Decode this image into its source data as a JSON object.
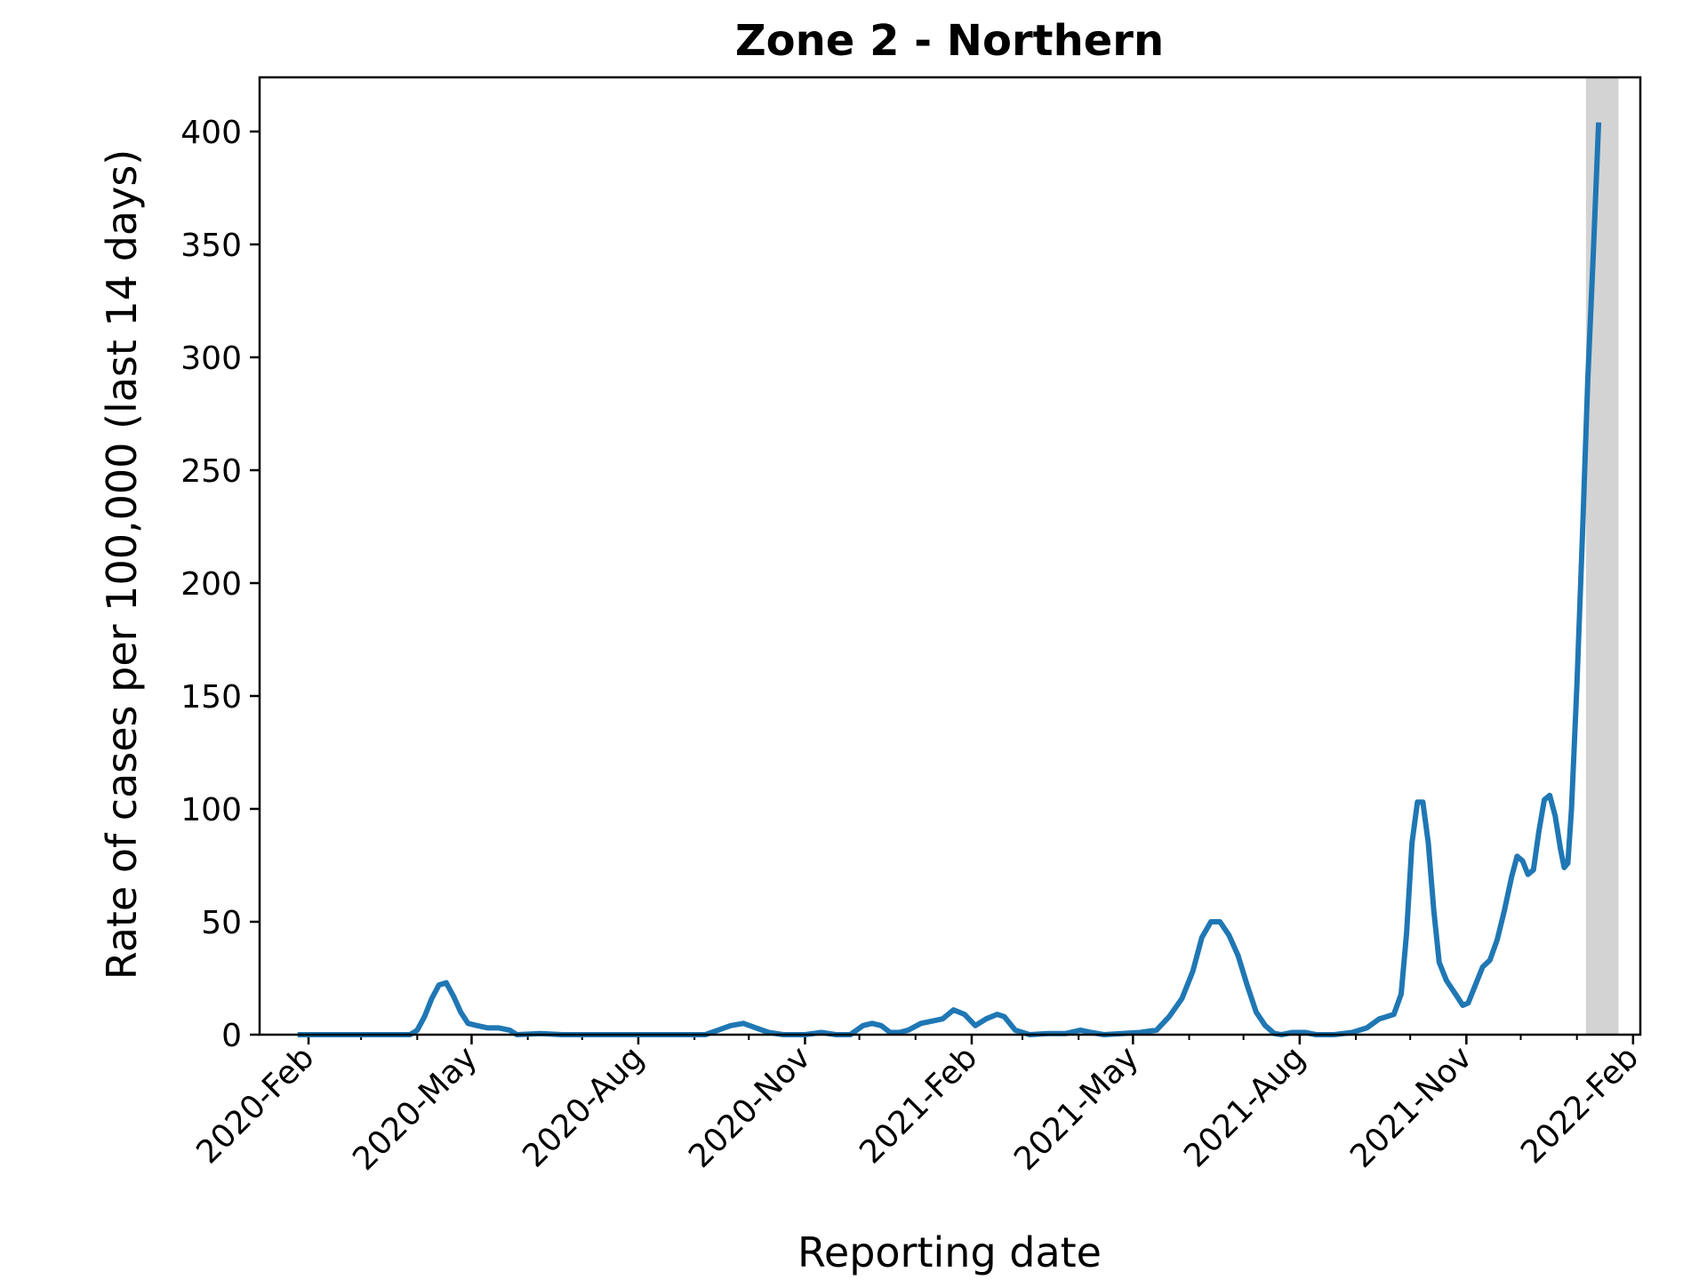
{
  "chart_data": {
    "type": "line",
    "title": "Zone 2 - Northern",
    "xlabel": "Reporting date",
    "ylabel": "Rate of cases per 100,000 (last 14 days)",
    "ylim": [
      0,
      424
    ],
    "xlim": [
      "2020-01-05",
      "2022-02-05"
    ],
    "yticks": [
      0,
      50,
      100,
      150,
      200,
      250,
      300,
      350,
      400
    ],
    "xticks": [
      {
        "date": "2020-02-01",
        "label": "2020-Feb"
      },
      {
        "date": "2020-05-01",
        "label": "2020-May"
      },
      {
        "date": "2020-08-01",
        "label": "2020-Aug"
      },
      {
        "date": "2020-11-01",
        "label": "2020-Nov"
      },
      {
        "date": "2021-02-01",
        "label": "2021-Feb"
      },
      {
        "date": "2021-05-01",
        "label": "2021-May"
      },
      {
        "date": "2021-08-01",
        "label": "2021-Aug"
      },
      {
        "date": "2021-11-01",
        "label": "2021-Nov"
      },
      {
        "date": "2022-02-01",
        "label": "2022-Feb"
      }
    ],
    "minor_xticks": [
      "2020-03-01",
      "2020-04-01",
      "2020-06-01",
      "2020-07-01",
      "2020-09-01",
      "2020-10-01",
      "2020-12-01",
      "2021-01-01",
      "2021-03-01",
      "2021-04-01",
      "2021-06-01",
      "2021-07-01",
      "2021-09-01",
      "2021-10-01",
      "2021-12-01",
      "2022-01-01"
    ],
    "shaded_region": {
      "start": "2022-01-06",
      "end": "2022-01-24",
      "color": "#d3d3d3"
    },
    "grid": false,
    "series": [
      {
        "color": "#1f77b4",
        "points": [
          [
            "2020-01-26",
            0
          ],
          [
            "2020-02-15",
            0
          ],
          [
            "2020-03-10",
            0
          ],
          [
            "2020-03-28",
            0
          ],
          [
            "2020-04-01",
            2
          ],
          [
            "2020-04-05",
            8
          ],
          [
            "2020-04-09",
            16
          ],
          [
            "2020-04-13",
            22
          ],
          [
            "2020-04-17",
            23
          ],
          [
            "2020-04-21",
            17
          ],
          [
            "2020-04-25",
            10
          ],
          [
            "2020-04-29",
            5
          ],
          [
            "2020-05-04",
            4
          ],
          [
            "2020-05-10",
            3
          ],
          [
            "2020-05-16",
            3
          ],
          [
            "2020-05-22",
            2
          ],
          [
            "2020-05-26",
            0
          ],
          [
            "2020-06-08",
            0.5
          ],
          [
            "2020-06-20",
            0
          ],
          [
            "2020-07-15",
            0
          ],
          [
            "2020-08-15",
            0
          ],
          [
            "2020-09-07",
            0
          ],
          [
            "2020-09-14",
            2
          ],
          [
            "2020-09-21",
            4
          ],
          [
            "2020-09-28",
            5
          ],
          [
            "2020-10-05",
            3
          ],
          [
            "2020-10-12",
            1
          ],
          [
            "2020-10-20",
            0
          ],
          [
            "2020-11-01",
            0
          ],
          [
            "2020-11-10",
            1
          ],
          [
            "2020-11-18",
            0
          ],
          [
            "2020-11-26",
            0
          ],
          [
            "2020-12-03",
            4
          ],
          [
            "2020-12-08",
            5
          ],
          [
            "2020-12-13",
            4
          ],
          [
            "2020-12-18",
            1
          ],
          [
            "2020-12-23",
            1
          ],
          [
            "2020-12-28",
            2
          ],
          [
            "2021-01-04",
            5
          ],
          [
            "2021-01-10",
            6
          ],
          [
            "2021-01-16",
            7
          ],
          [
            "2021-01-22",
            11
          ],
          [
            "2021-01-28",
            9
          ],
          [
            "2021-02-03",
            4
          ],
          [
            "2021-02-09",
            7
          ],
          [
            "2021-02-15",
            9
          ],
          [
            "2021-02-19",
            8
          ],
          [
            "2021-02-25",
            2
          ],
          [
            "2021-03-05",
            0
          ],
          [
            "2021-03-15",
            0.5
          ],
          [
            "2021-03-25",
            0.5
          ],
          [
            "2021-04-02",
            2
          ],
          [
            "2021-04-08",
            1
          ],
          [
            "2021-04-15",
            0
          ],
          [
            "2021-04-25",
            0.5
          ],
          [
            "2021-05-05",
            1
          ],
          [
            "2021-05-14",
            2
          ],
          [
            "2021-05-21",
            8
          ],
          [
            "2021-05-28",
            16
          ],
          [
            "2021-06-03",
            28
          ],
          [
            "2021-06-08",
            43
          ],
          [
            "2021-06-13",
            50
          ],
          [
            "2021-06-18",
            50
          ],
          [
            "2021-06-23",
            44
          ],
          [
            "2021-06-28",
            35
          ],
          [
            "2021-07-03",
            22
          ],
          [
            "2021-07-08",
            10
          ],
          [
            "2021-07-13",
            4
          ],
          [
            "2021-07-18",
            0.5
          ],
          [
            "2021-07-22",
            0
          ],
          [
            "2021-07-28",
            1
          ],
          [
            "2021-08-04",
            1
          ],
          [
            "2021-08-10",
            0
          ],
          [
            "2021-08-20",
            0
          ],
          [
            "2021-08-30",
            1
          ],
          [
            "2021-09-07",
            3
          ],
          [
            "2021-09-14",
            7
          ],
          [
            "2021-09-18",
            8
          ],
          [
            "2021-09-22",
            9
          ],
          [
            "2021-09-26",
            18
          ],
          [
            "2021-09-29",
            45
          ],
          [
            "2021-10-02",
            85
          ],
          [
            "2021-10-05",
            103
          ],
          [
            "2021-10-08",
            103
          ],
          [
            "2021-10-11",
            85
          ],
          [
            "2021-10-14",
            55
          ],
          [
            "2021-10-17",
            32
          ],
          [
            "2021-10-21",
            24
          ],
          [
            "2021-10-26",
            18
          ],
          [
            "2021-10-30",
            13
          ],
          [
            "2021-11-02",
            14
          ],
          [
            "2021-11-06",
            22
          ],
          [
            "2021-11-10",
            30
          ],
          [
            "2021-11-14",
            33
          ],
          [
            "2021-11-18",
            42
          ],
          [
            "2021-11-22",
            55
          ],
          [
            "2021-11-26",
            70
          ],
          [
            "2021-11-29",
            79
          ],
          [
            "2021-12-02",
            77
          ],
          [
            "2021-12-05",
            71
          ],
          [
            "2021-12-08",
            73
          ],
          [
            "2021-12-11",
            90
          ],
          [
            "2021-12-14",
            104
          ],
          [
            "2021-12-17",
            106
          ],
          [
            "2021-12-20",
            97
          ],
          [
            "2021-12-23",
            82
          ],
          [
            "2021-12-25",
            74
          ],
          [
            "2021-12-27",
            76
          ],
          [
            "2021-12-29",
            100
          ],
          [
            "2022-01-01",
            155
          ],
          [
            "2022-01-04",
            220
          ],
          [
            "2022-01-07",
            290
          ],
          [
            "2022-01-10",
            345
          ],
          [
            "2022-01-13",
            404
          ]
        ]
      }
    ]
  }
}
